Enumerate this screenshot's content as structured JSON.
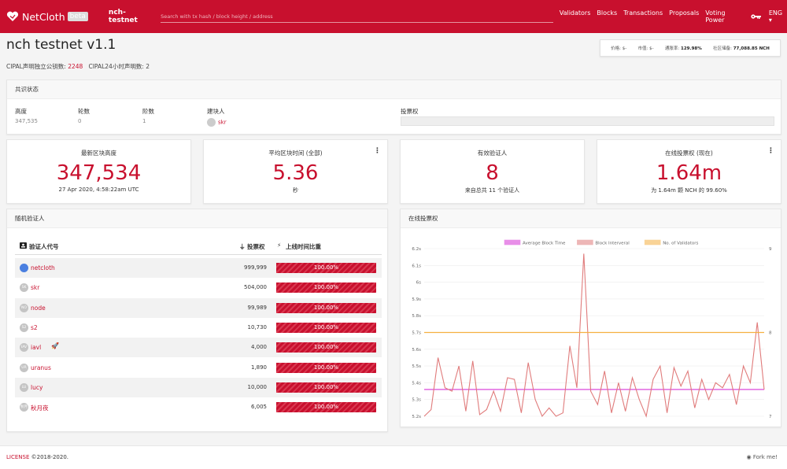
{
  "nav": {
    "brand": "NetCloth",
    "beta": "beta",
    "network": "nch-testnet",
    "search_placeholder": "Search with tx hash / block height / address",
    "menu": [
      "Validators",
      "Blocks",
      "Transactions",
      "Proposals",
      "Voting Power"
    ],
    "lang": "ENG"
  },
  "page": {
    "title": "nch testnet v1.1",
    "sub1_label": "CIPAL声明独立公钥数:",
    "sub1_value": "2248",
    "sub2": "CIPAL24小时声明数: 2"
  },
  "price": {
    "price": "价格: $-",
    "mcap": "市值: $-",
    "inflation_label": "通胀率:",
    "inflation_value": "129.98%",
    "pool_label": "社区储备:",
    "pool_value": "77,088.85 NCH"
  },
  "consensus": {
    "header": "共识状态",
    "height_label": "高度",
    "height": "347,535",
    "round_label": "轮数",
    "round": "0",
    "step_label": "阶数",
    "step": "1",
    "proposer_label": "建块人",
    "proposer": "skr",
    "vp_label": "投票权",
    "vp_fraction": 0
  },
  "stats": {
    "latest": {
      "label": "最新区块高度",
      "value": "347,534",
      "sub": "27 Apr 2020, 4:58:22am UTC"
    },
    "blocktime": {
      "label": "平均区块时间 (全部)",
      "value": "5.36",
      "sub": "秒"
    },
    "validators": {
      "label": "有效验证人",
      "value": "8",
      "sub": "来自总共 11 个验证人"
    },
    "online": {
      "label": "在线投票权 (现在)",
      "value": "1.64m",
      "sub": "为 1.64m 颗 NCH 的 99.60%"
    }
  },
  "random": {
    "header": "随机验证人",
    "col_name": "验证人代号",
    "col_power": "投票权",
    "col_uptime": "上线时间比重",
    "rows": [
      {
        "av": "",
        "name": "netcloth",
        "power": "999,999",
        "uptime": "100.00%",
        "uptime_fraction": 1.0
      },
      {
        "av": "SK",
        "name": "skr",
        "power": "504,000",
        "uptime": "100.00%",
        "uptime_fraction": 1.0
      },
      {
        "av": "NO",
        "name": "node",
        "power": "99,989",
        "uptime": "100.00%",
        "uptime_fraction": 1.0
      },
      {
        "av": "S2",
        "name": "s2",
        "power": "10,730",
        "uptime": "100.00%",
        "uptime_fraction": 1.0
      },
      {
        "av": "IAV",
        "name": "iavl",
        "power": "4,000",
        "uptime": "100.00%",
        "uptime_fraction": 1.0
      },
      {
        "av": "UR",
        "name": "uranus",
        "power": "1,890",
        "uptime": "100.00%",
        "uptime_fraction": 1.0
      },
      {
        "av": "LU",
        "name": "lucy",
        "power": "10,000",
        "uptime": "100.00%",
        "uptime_fraction": 1.0
      },
      {
        "av": "秋月",
        "name": "秋月夜",
        "power": "6,005",
        "uptime": "100.00%",
        "uptime_fraction": 1.0
      }
    ]
  },
  "chart_panel": {
    "header": "在线投票权"
  },
  "chart_data": {
    "type": "line",
    "legend_position": "top",
    "grid": true,
    "y_left": {
      "ticks": [
        "6.2s",
        "6.1s",
        "6s",
        "5.9s",
        "5.8s",
        "5.7s",
        "5.6s",
        "5.5s",
        "5.4s",
        "5.3s",
        "5.2s"
      ],
      "range": [
        5.2,
        6.2
      ]
    },
    "y_right": {
      "ticks": [
        "9",
        "8",
        "7"
      ],
      "range": [
        7,
        9
      ]
    },
    "series": [
      {
        "name": "Average Block Time",
        "color": "#d633d6",
        "axis": "left",
        "values": [
          5.36,
          5.36,
          5.36,
          5.36,
          5.36,
          5.36,
          5.36,
          5.36,
          5.36,
          5.36,
          5.36,
          5.36,
          5.36,
          5.36,
          5.36,
          5.36,
          5.36,
          5.36,
          5.36,
          5.36,
          5.36,
          5.36,
          5.36,
          5.36,
          5.36,
          5.36,
          5.36,
          5.36,
          5.36,
          5.36,
          5.36,
          5.36,
          5.36,
          5.36,
          5.36,
          5.36,
          5.36,
          5.36,
          5.36,
          5.36,
          5.36,
          5.36,
          5.36,
          5.36,
          5.36,
          5.36,
          5.36,
          5.36,
          5.36,
          5.36
        ]
      },
      {
        "name": "Block Interveral",
        "color": "#e07b7b",
        "axis": "left",
        "values": [
          5.2,
          5.24,
          5.55,
          5.37,
          5.35,
          5.5,
          5.23,
          5.53,
          5.21,
          5.24,
          5.35,
          5.23,
          5.43,
          5.42,
          5.22,
          5.52,
          5.3,
          5.2,
          5.25,
          5.2,
          5.22,
          5.62,
          5.37,
          6.17,
          5.35,
          5.27,
          5.47,
          5.22,
          5.4,
          5.23,
          5.43,
          5.3,
          5.2,
          5.42,
          5.5,
          5.22,
          5.49,
          5.38,
          5.47,
          5.25,
          5.42,
          5.3,
          5.4,
          5.37,
          5.45,
          5.27,
          5.5,
          5.4,
          5.76,
          5.36
        ]
      },
      {
        "name": "No. of Validators",
        "color": "#f5b041",
        "axis": "right",
        "values": [
          8,
          8,
          8,
          8,
          8,
          8,
          8,
          8,
          8,
          8,
          8,
          8,
          8,
          8,
          8,
          8,
          8,
          8,
          8,
          8,
          8,
          8,
          8,
          8,
          8,
          8,
          8,
          8,
          8,
          8,
          8,
          8,
          8,
          8,
          8,
          8,
          8,
          8,
          8,
          8,
          8,
          8,
          8,
          8,
          8,
          8,
          8,
          8,
          8,
          8
        ]
      }
    ]
  },
  "footer": {
    "license": "LICENSE",
    "copy": "©2018-2020.",
    "fork": "Fork me!"
  }
}
